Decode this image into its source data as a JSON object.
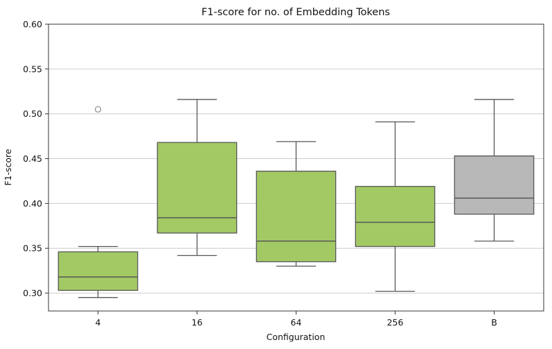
{
  "chart_data": {
    "type": "boxplot",
    "title": "F1-score for no. of Embedding Tokens",
    "xlabel": "Configuration",
    "ylabel": "F1-score",
    "categories": [
      "4",
      "16",
      "64",
      "256",
      "B"
    ],
    "ylim": [
      0.28,
      0.6
    ],
    "yticks": [
      0.3,
      0.35,
      0.4,
      0.45,
      0.5,
      0.55,
      0.6
    ],
    "grid": "horizontal",
    "legend": "none",
    "colors": {
      "box_green": "#a3c965",
      "box_gray": "#b8b8b8",
      "edge": "#555555",
      "grid": "#cccccc",
      "spine": "#333333",
      "outlier": "#8a8a8a",
      "background": "#ffffff"
    },
    "series": [
      {
        "category": "4",
        "whisker_low": 0.295,
        "q1": 0.303,
        "median": 0.318,
        "q3": 0.346,
        "whisker_high": 0.352,
        "outliers": [
          0.505
        ],
        "color": "#a3c965"
      },
      {
        "category": "16",
        "whisker_low": 0.342,
        "q1": 0.367,
        "median": 0.384,
        "q3": 0.468,
        "whisker_high": 0.516,
        "outliers": [],
        "color": "#a3c965"
      },
      {
        "category": "64",
        "whisker_low": 0.33,
        "q1": 0.335,
        "median": 0.358,
        "q3": 0.436,
        "whisker_high": 0.469,
        "outliers": [],
        "color": "#a3c965"
      },
      {
        "category": "256",
        "whisker_low": 0.302,
        "q1": 0.352,
        "median": 0.379,
        "q3": 0.419,
        "whisker_high": 0.491,
        "outliers": [],
        "color": "#a3c965"
      },
      {
        "category": "B",
        "whisker_low": 0.358,
        "q1": 0.388,
        "median": 0.406,
        "q3": 0.453,
        "whisker_high": 0.516,
        "outliers": [],
        "color": "#b8b8b8"
      }
    ]
  }
}
